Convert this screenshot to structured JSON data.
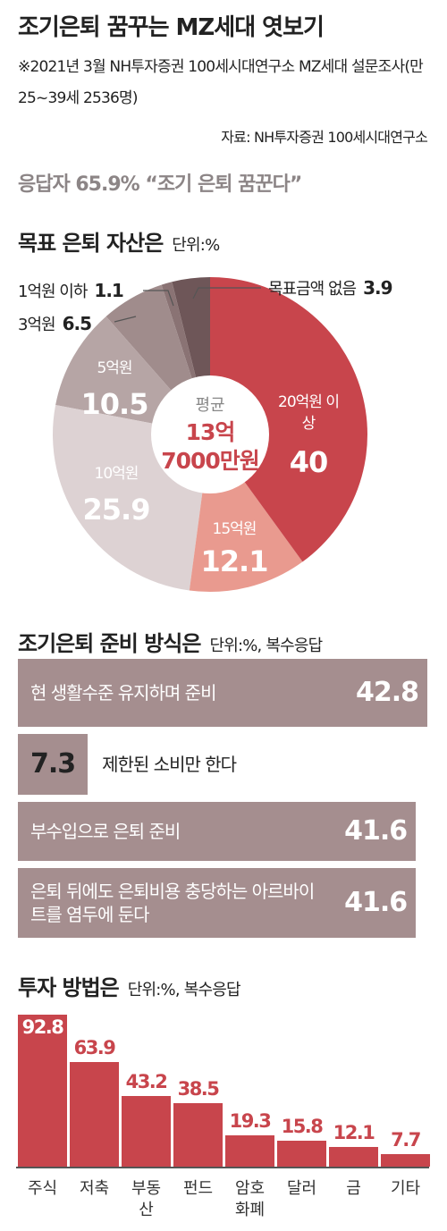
{
  "header": {
    "title": "조기은퇴 꿈꾸는 MZ세대 엿보기",
    "note": "※2021년 3월 NH투자증권 100세시대연구소 MZ세대 설문조사(만 25~39세 2536명)",
    "source": "자료: NH투자증권 100세시대연구소",
    "headline": "응답자 65.9% “조기 은퇴 꿈꾼다”"
  },
  "chart_data": [
    {
      "type": "donut",
      "title": "목표 은퇴 자산은",
      "unit": "단위:%",
      "center_label": "평균",
      "center_value": "13억 7000만원",
      "categories": [
        "20억원 이상",
        "15억원",
        "10억원",
        "5억원",
        "3억원",
        "1억원 이하",
        "목표금액 없음"
      ],
      "values": [
        40,
        12.1,
        25.9,
        10.5,
        6.5,
        1.1,
        3.9
      ],
      "colors": [
        "#c8454c",
        "#e99a8f",
        "#ddd2d3",
        "#b6a5a5",
        "#a08c8c",
        "#8a7374",
        "#6e5658"
      ]
    },
    {
      "type": "hbar",
      "title": "조기은퇴 준비 방식은",
      "unit": "단위:%, 복수응답",
      "categories": [
        "현 생활수준 유지하며 준비",
        "제한된 소비만 한다",
        "부수입으로 은퇴 준비",
        "은퇴 뒤에도 은퇴비용 충당하는 아르바이트를 염두에 둔다"
      ],
      "values": [
        42.8,
        7.3,
        41.6,
        41.6
      ],
      "color": "#a58e8f"
    },
    {
      "type": "bar",
      "title": "투자 방법은",
      "unit": "단위:%, 복수응답",
      "categories": [
        "주식",
        "저축",
        "부동산",
        "펀드",
        "암호화폐",
        "달러",
        "금",
        "기타"
      ],
      "values": [
        92.8,
        63.9,
        43.2,
        38.5,
        19.3,
        15.8,
        12.1,
        7.7
      ],
      "color": "#c8454c"
    }
  ]
}
